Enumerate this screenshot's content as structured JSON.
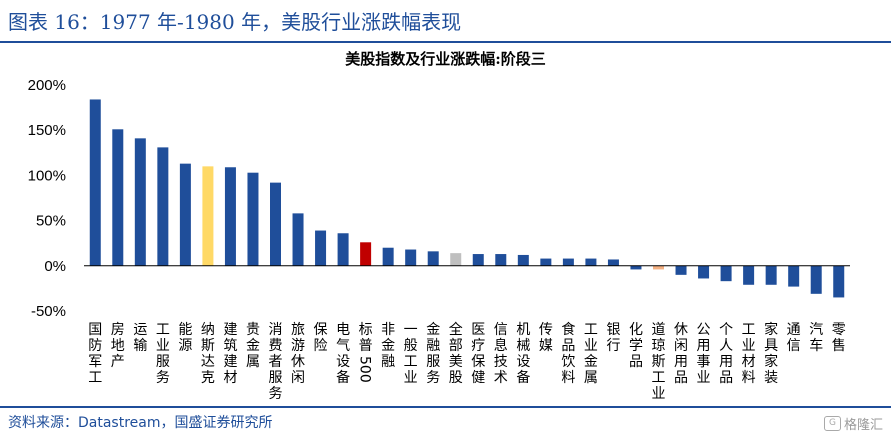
{
  "figure_title": "图表 16：1977 年-1980 年，美股行业涨跌幅表现",
  "source": "资料来源：Datastream，国盛证券研究所",
  "watermark": {
    "mark": "G",
    "text": "格隆汇"
  },
  "colors": {
    "default": "#1f4e9a",
    "highlight": "#ffd966",
    "sp500": "#c00000",
    "all_us": "#bfbfbf",
    "negative_tan": "#f4b183"
  },
  "chart_data": {
    "type": "bar",
    "title": "美股指数及行业涨跌幅:阶段三",
    "xlabel": "",
    "ylabel": "",
    "ylim": [
      -50,
      200
    ],
    "yticks": [
      200,
      150,
      100,
      50,
      0,
      -50
    ],
    "ytick_labels": [
      "200%",
      "150%",
      "100%",
      "50%",
      "0%",
      "-50%"
    ],
    "grid": false,
    "categories": [
      "国防军工",
      "房地产",
      "运输",
      "工业服务",
      "能源",
      "纳斯达克",
      "建筑建材",
      "贵金属",
      "消费者服务",
      "旅游休闲",
      "保险",
      "电气设备",
      "标普500",
      "非金融",
      "一般工业",
      "金融服务",
      "全部美股",
      "医疗保健",
      "信息技术",
      "机械设备",
      "传媒",
      "食品饮料",
      "工业金属",
      "银行",
      "化学品",
      "道琼斯工业",
      "休闲用品",
      "公用事业",
      "个人用品",
      "工业材料",
      "家具家装",
      "通信",
      "汽车",
      "零售"
    ],
    "values": [
      184,
      151,
      141,
      131,
      113,
      110,
      109,
      103,
      92,
      58,
      39,
      36,
      26,
      20,
      18,
      16,
      14,
      13,
      13,
      12,
      8,
      8,
      8,
      7,
      -4,
      -4,
      -10,
      -14,
      -17,
      -21,
      -21,
      -23,
      -31,
      -35
    ],
    "bar_colors": [
      "default",
      "default",
      "default",
      "default",
      "default",
      "highlight",
      "default",
      "default",
      "default",
      "default",
      "default",
      "default",
      "sp500",
      "default",
      "default",
      "default",
      "all_us",
      "default",
      "default",
      "default",
      "default",
      "default",
      "default",
      "default",
      "default",
      "negative_tan",
      "default",
      "default",
      "default",
      "default",
      "default",
      "default",
      "default",
      "default"
    ]
  }
}
